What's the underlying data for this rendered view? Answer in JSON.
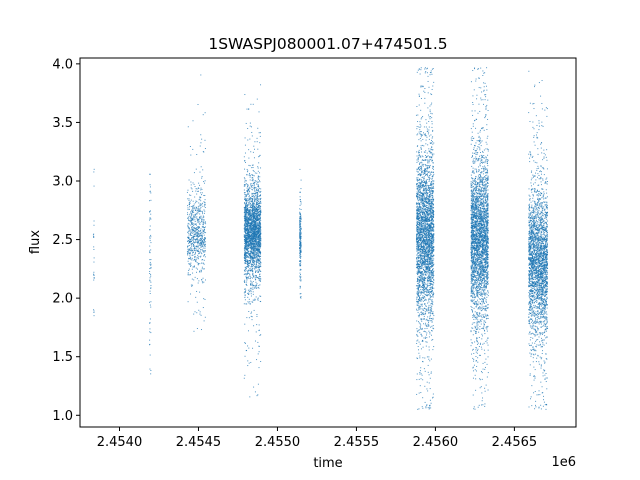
{
  "chart_data": {
    "type": "scatter",
    "title": "1SWASPJ080001.07+474501.5",
    "xlabel": "time",
    "ylabel": "flux",
    "x_offset_label": "1e6",
    "xlim": [
      2453750,
      2456890
    ],
    "ylim": [
      0.9,
      4.05
    ],
    "x_ticks": [
      2454000,
      2454500,
      2455000,
      2455500,
      2456000,
      2456500
    ],
    "x_tick_labels": [
      "2.4540",
      "2.4545",
      "2.4550",
      "2.4555",
      "2.4560",
      "2.4565"
    ],
    "y_ticks": [
      1.0,
      1.5,
      2.0,
      2.5,
      3.0,
      3.5,
      4.0
    ],
    "y_tick_labels": [
      "1.0",
      "1.5",
      "2.0",
      "2.5",
      "3.0",
      "3.5",
      "4.0"
    ],
    "grid": false,
    "marker_color": "#1f77b4",
    "observing_seasons": [
      {
        "x_start": 2453835,
        "x_end": 2453840,
        "y_center": 2.45,
        "y_spread": 0.35,
        "y_min": 1.85,
        "y_max": 3.12,
        "n_points": 25
      },
      {
        "x_start": 2454190,
        "x_end": 2454200,
        "y_center": 2.4,
        "y_spread": 0.38,
        "y_min": 1.35,
        "y_max": 3.08,
        "n_points": 70
      },
      {
        "x_start": 2454430,
        "x_end": 2454545,
        "y_center": 2.55,
        "y_spread": 0.16,
        "y_min": 1.7,
        "y_max": 3.92,
        "n_points": 700
      },
      {
        "x_start": 2454790,
        "x_end": 2454895,
        "y_center": 2.56,
        "y_spread": 0.17,
        "y_min": 1.07,
        "y_max": 3.85,
        "n_points": 2400
      },
      {
        "x_start": 2455140,
        "x_end": 2455150,
        "y_center": 2.5,
        "y_spread": 0.15,
        "y_min": 2.0,
        "y_max": 3.18,
        "n_points": 200
      },
      {
        "x_start": 2455880,
        "x_end": 2455990,
        "y_center": 2.55,
        "y_spread": 0.3,
        "y_min": 1.05,
        "y_max": 3.97,
        "n_points": 3000
      },
      {
        "x_start": 2456225,
        "x_end": 2456335,
        "y_center": 2.5,
        "y_spread": 0.3,
        "y_min": 1.05,
        "y_max": 3.97,
        "n_points": 3000
      },
      {
        "x_start": 2456590,
        "x_end": 2456710,
        "y_center": 2.3,
        "y_spread": 0.28,
        "y_min": 1.05,
        "y_max": 3.97,
        "n_points": 2600
      }
    ]
  }
}
